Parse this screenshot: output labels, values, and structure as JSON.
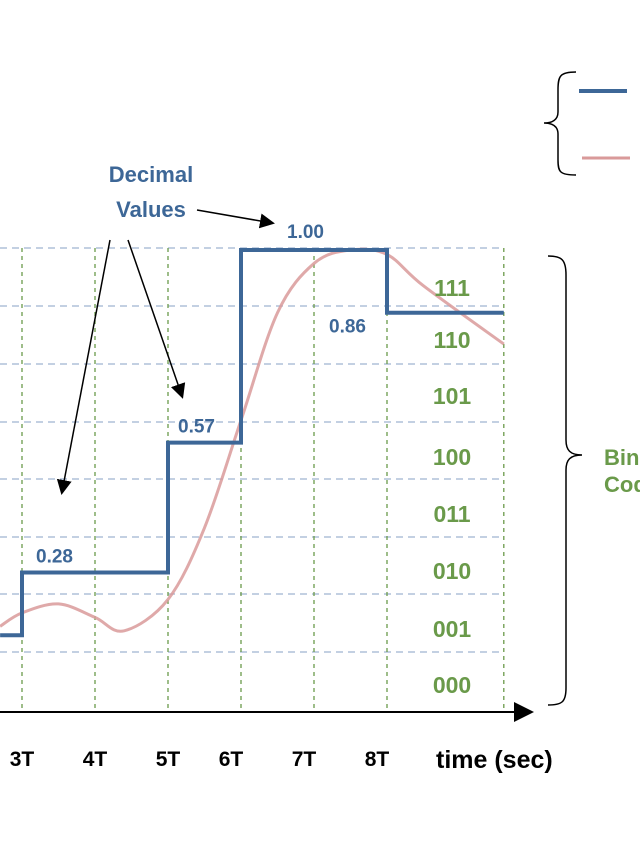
{
  "annotation": {
    "line1": "Decimal",
    "line2": "Values"
  },
  "right_label": {
    "line1": "Binary",
    "line2": "Codes"
  },
  "x_ticks": [
    {
      "t": 3,
      "label": "3T"
    },
    {
      "t": 4,
      "label": "4T"
    },
    {
      "t": 5,
      "label": "5T"
    },
    {
      "t": 6,
      "label": "6T"
    },
    {
      "t": 7,
      "label": "7T"
    },
    {
      "t": 8,
      "label": "8T"
    }
  ],
  "x_axis_label": "time (sec)",
  "binary_codes": [
    "111",
    "110",
    "101",
    "100",
    "011",
    "010",
    "001",
    "000"
  ],
  "colors": {
    "quantized": "#3d6797",
    "analog": "#d99a9a",
    "codes": "#6a9a4a",
    "grid_h": "#9fb3d1",
    "grid_v": "#6a9a4a"
  },
  "chart_data": {
    "type": "line",
    "quantized_steps": [
      {
        "t_start": 2.7,
        "t_end": 3,
        "value": 0.14,
        "label": ""
      },
      {
        "t_start": 3,
        "t_end": 5,
        "value": 0.28,
        "label": "0.28"
      },
      {
        "t_start": 5,
        "t_end": 6,
        "value": 0.57,
        "label": "0.57"
      },
      {
        "t_start": 6,
        "t_end": 8,
        "value": 1.0,
        "label": "1.00"
      },
      {
        "t_start": 8,
        "t_end": 9.6,
        "value": 0.86,
        "label": "0.86"
      }
    ],
    "analog_signal": [
      [
        2.7,
        0.16
      ],
      [
        3,
        0.19
      ],
      [
        3.5,
        0.21
      ],
      [
        4,
        0.18
      ],
      [
        4.4,
        0.15
      ],
      [
        5,
        0.22
      ],
      [
        5.5,
        0.38
      ],
      [
        6,
        0.62
      ],
      [
        6.5,
        0.86
      ],
      [
        7,
        0.97
      ],
      [
        7.5,
        1.0
      ],
      [
        8,
        0.99
      ],
      [
        8.5,
        0.92
      ],
      [
        9.6,
        0.79
      ]
    ]
  }
}
